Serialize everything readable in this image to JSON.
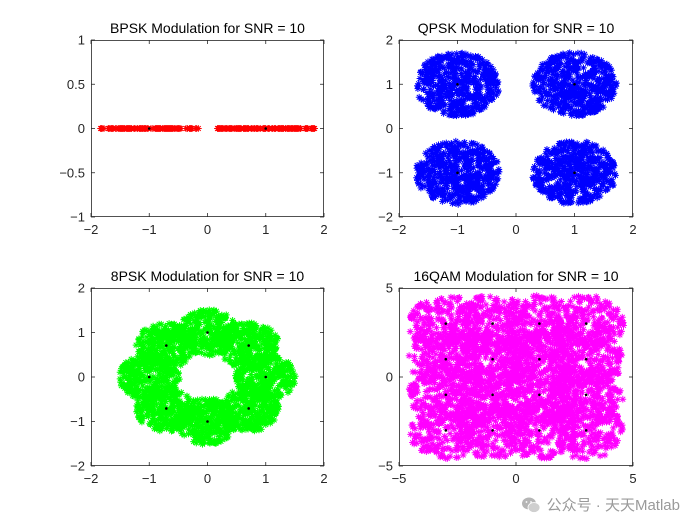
{
  "chart_data": [
    {
      "type": "scatter",
      "title": "BPSK Modulation for SNR = 10",
      "xlim": [
        -2,
        2
      ],
      "ylim": [
        -1,
        1
      ],
      "xticks": [
        -2,
        -1,
        0,
        1,
        2
      ],
      "yticks": [
        -1,
        -0.5,
        0,
        0.5,
        1
      ],
      "marker": "*",
      "color": "#ff0000",
      "constellation": [
        [
          -1,
          0
        ],
        [
          1,
          0
        ]
      ],
      "cloud_spread": [
        0.85,
        0.0
      ],
      "cloud_shape": "box",
      "samples_per_point": 120
    },
    {
      "type": "scatter",
      "title": "QPSK Modulation for SNR = 10",
      "xlim": [
        -2,
        2
      ],
      "ylim": [
        -2,
        2
      ],
      "xticks": [
        -2,
        -1,
        0,
        1,
        2
      ],
      "yticks": [
        -2,
        -1,
        0,
        1,
        2
      ],
      "marker": "*",
      "color": "#0000ff",
      "constellation": [
        [
          -1,
          1
        ],
        [
          1,
          1
        ],
        [
          -1,
          -1
        ],
        [
          1,
          -1
        ]
      ],
      "cloud_spread": [
        0.72,
        0.72
      ],
      "cloud_shape": "disc",
      "samples_per_point": 500
    },
    {
      "type": "scatter",
      "title": "8PSK Modulation for SNR = 10",
      "xlim": [
        -2,
        2
      ],
      "ylim": [
        -2,
        2
      ],
      "xticks": [
        -2,
        -1,
        0,
        1,
        2
      ],
      "yticks": [
        -2,
        -1,
        0,
        1,
        2
      ],
      "marker": "*",
      "color": "#00ff00",
      "constellation": [
        [
          1,
          0
        ],
        [
          0.707,
          0.707
        ],
        [
          0,
          1
        ],
        [
          -0.707,
          0.707
        ],
        [
          -1,
          0
        ],
        [
          -0.707,
          -0.707
        ],
        [
          0,
          -1
        ],
        [
          0.707,
          -0.707
        ]
      ],
      "cloud_spread": [
        0.52,
        0.52
      ],
      "cloud_shape": "disc",
      "samples_per_point": 300
    },
    {
      "type": "scatter",
      "title": "16QAM Modulation for SNR = 10",
      "xlim": [
        -5,
        5
      ],
      "ylim": [
        -5,
        5
      ],
      "xticks": [
        -5,
        0,
        5
      ],
      "yticks": [
        -5,
        0,
        5
      ],
      "marker": "*",
      "color": "#ff00ff",
      "constellation": [
        [
          -3,
          3
        ],
        [
          -1,
          3
        ],
        [
          1,
          3
        ],
        [
          3,
          3
        ],
        [
          -3,
          1
        ],
        [
          -1,
          1
        ],
        [
          1,
          1
        ],
        [
          3,
          1
        ],
        [
          -3,
          -1
        ],
        [
          -1,
          -1
        ],
        [
          1,
          -1
        ],
        [
          3,
          -1
        ],
        [
          -3,
          -3
        ],
        [
          -1,
          -3
        ],
        [
          1,
          -3
        ],
        [
          3,
          -3
        ]
      ],
      "cloud_spread": [
        1.6,
        1.6
      ],
      "cloud_shape": "disc",
      "samples_per_point": 220
    }
  ],
  "watermark": {
    "text": "公众号 · 天天Matlab",
    "icon": "wechat-icon"
  }
}
